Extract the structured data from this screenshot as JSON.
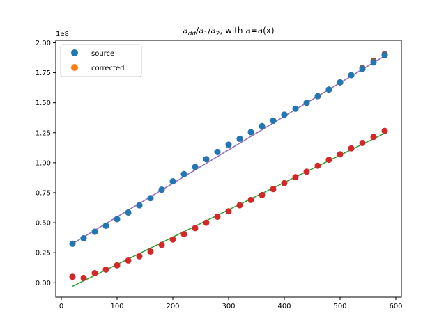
{
  "chart_data": {
    "type": "scatter",
    "title_parts": {
      "a_main": "a",
      "a_sub": "dif",
      "slash1": "/",
      "a1_main": "a",
      "a1_sub": "1",
      "slash2": "/",
      "a2_main": "a",
      "a2_sub": "2",
      "rest": ", with a=a(x)"
    },
    "xlim": [
      -10,
      610
    ],
    "ylim": [
      -0.12,
      2.02
    ],
    "x_ticks": [
      0,
      100,
      200,
      300,
      400,
      500,
      600
    ],
    "x_tick_labels": [
      "0",
      "100",
      "200",
      "300",
      "400",
      "500",
      "600"
    ],
    "y_ticks": [
      0,
      0.25,
      0.5,
      0.75,
      1.0,
      1.25,
      1.5,
      1.75,
      2.0
    ],
    "y_tick_labels": [
      "0.00",
      "0.25",
      "0.50",
      "0.75",
      "1.00",
      "1.25",
      "1.50",
      "1.75",
      "2.00"
    ],
    "y_offset_label": "1e8",
    "grid": false,
    "legend_position": "top-left",
    "legend": [
      {
        "label": "source",
        "color": "#1f77b4"
      },
      {
        "label": "corrected",
        "color": "#ff7f0e"
      }
    ],
    "x": [
      20,
      40,
      60,
      80,
      100,
      120,
      140,
      160,
      180,
      200,
      220,
      240,
      260,
      280,
      300,
      320,
      340,
      360,
      380,
      400,
      420,
      440,
      460,
      480,
      500,
      520,
      540,
      560,
      580
    ],
    "series": [
      {
        "color": "#8c564b",
        "mark": "point",
        "values": [
          0.325,
          0.37,
          0.425,
          0.475,
          0.53,
          0.585,
          0.645,
          0.705,
          0.775,
          0.845,
          0.905,
          0.965,
          1.03,
          1.09,
          1.15,
          1.2,
          1.255,
          1.305,
          1.35,
          1.4,
          1.45,
          1.5,
          1.555,
          1.61,
          1.67,
          1.73,
          1.79,
          1.85,
          1.905
        ]
      },
      {
        "color": "#1f77b4",
        "mark": "point",
        "values": [
          0.325,
          0.37,
          0.425,
          0.475,
          0.53,
          0.585,
          0.645,
          0.705,
          0.775,
          0.845,
          0.905,
          0.965,
          1.03,
          1.09,
          1.15,
          1.2,
          1.255,
          1.305,
          1.35,
          1.4,
          1.45,
          1.5,
          1.555,
          1.61,
          1.67,
          1.73,
          1.78,
          1.835,
          1.895
        ]
      },
      {
        "color": "#d62728",
        "mark": "point",
        "values": [
          0.05,
          0.04,
          0.08,
          0.11,
          0.145,
          0.185,
          0.22,
          0.26,
          0.315,
          0.36,
          0.405,
          0.455,
          0.5,
          0.55,
          0.595,
          0.645,
          0.69,
          0.73,
          0.78,
          0.83,
          0.88,
          0.925,
          0.975,
          1.025,
          1.07,
          1.12,
          1.165,
          1.215,
          1.265
        ]
      },
      {
        "color": "#9467bd",
        "mark": "line",
        "x": [
          20,
          580
        ],
        "values": [
          0.325,
          1.89
        ]
      },
      {
        "color": "#2ca02c",
        "mark": "line",
        "x": [
          20,
          580
        ],
        "values": [
          -0.03,
          1.245
        ]
      }
    ]
  }
}
